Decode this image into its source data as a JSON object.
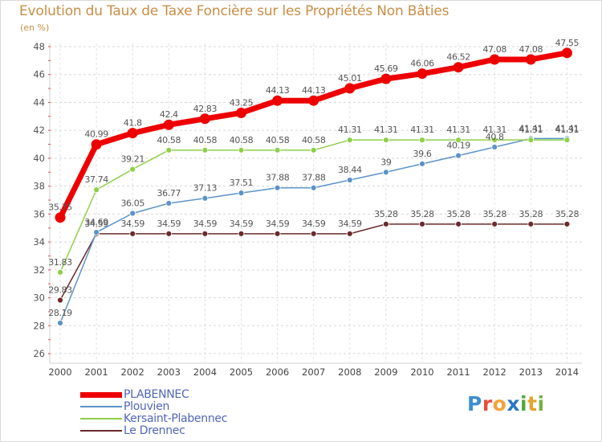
{
  "chart_data": {
    "type": "line",
    "title": "Evolution du Taux de Taxe Foncière sur les Propriétés Non Bâties",
    "unit_label": "(en %)",
    "x": [
      "2000",
      "2001",
      "2002",
      "2003",
      "2004",
      "2005",
      "2006",
      "2007",
      "2008",
      "2009",
      "2010",
      "2011",
      "2012",
      "2013",
      "2014"
    ],
    "ylim": [
      26,
      48
    ],
    "yticks": [
      26,
      28,
      30,
      32,
      34,
      36,
      38,
      40,
      42,
      44,
      46,
      48
    ],
    "grid": "horizontal dashed",
    "legend_position": "bottom-left",
    "series": [
      {
        "name": "PLABENNEC",
        "color": "#ee0000",
        "values": [
          35.75,
          40.99,
          41.8,
          42.4,
          42.83,
          43.25,
          44.13,
          44.13,
          45.01,
          45.69,
          46.06,
          46.52,
          47.08,
          47.08,
          47.55
        ],
        "labels": [
          "35.75",
          "40.99",
          "41.8",
          "42.4",
          "42.83",
          "43.25",
          "44.13",
          "44.13",
          "45.01",
          "45.69",
          "46.06",
          "46.52",
          "47.08",
          "47.08",
          "47.55"
        ]
      },
      {
        "name": "Plouvien",
        "color": "#5b93c9",
        "values": [
          28.19,
          34.69,
          36.05,
          36.77,
          37.13,
          37.51,
          37.88,
          37.88,
          38.44,
          39,
          39.6,
          40.19,
          40.8,
          41.41,
          41.41
        ],
        "labels": [
          "28.19",
          "34.69",
          "36.05",
          "36.77",
          "37.13",
          "37.51",
          "37.88",
          "37.88",
          "38.44",
          "39",
          "39.6",
          "40.19",
          "40.8",
          "41.41",
          "41.41"
        ]
      },
      {
        "name": "Kersaint-Plabennec",
        "color": "#8fcf4a",
        "values": [
          31.83,
          37.74,
          39.21,
          40.58,
          40.58,
          40.58,
          40.58,
          40.58,
          41.31,
          41.31,
          41.31,
          41.31,
          41.31,
          41.31,
          41.31
        ],
        "labels": [
          "31.83",
          "37.74",
          "39.21",
          "40.58",
          "40.58",
          "40.58",
          "40.58",
          "40.58",
          "41.31",
          "41.31",
          "41.31",
          "41.31",
          "41.31",
          "41.31",
          "41.31"
        ]
      },
      {
        "name": "Le Drennec",
        "color": "#6b2a2a",
        "values": [
          29.83,
          34.59,
          34.59,
          34.59,
          34.59,
          34.59,
          34.59,
          34.59,
          34.59,
          35.28,
          35.28,
          35.28,
          35.28,
          35.28,
          35.28
        ],
        "labels": [
          "29.83",
          "34.59",
          "34.59",
          "34.59",
          "34.59",
          "34.59",
          "34.59",
          "34.59",
          "34.59",
          "35.28",
          "35.28",
          "35.28",
          "35.28",
          "35.28",
          "35.28"
        ]
      }
    ]
  },
  "logo": {
    "letters": [
      "P",
      "r",
      "o",
      "x",
      "i",
      "t",
      "i"
    ]
  }
}
